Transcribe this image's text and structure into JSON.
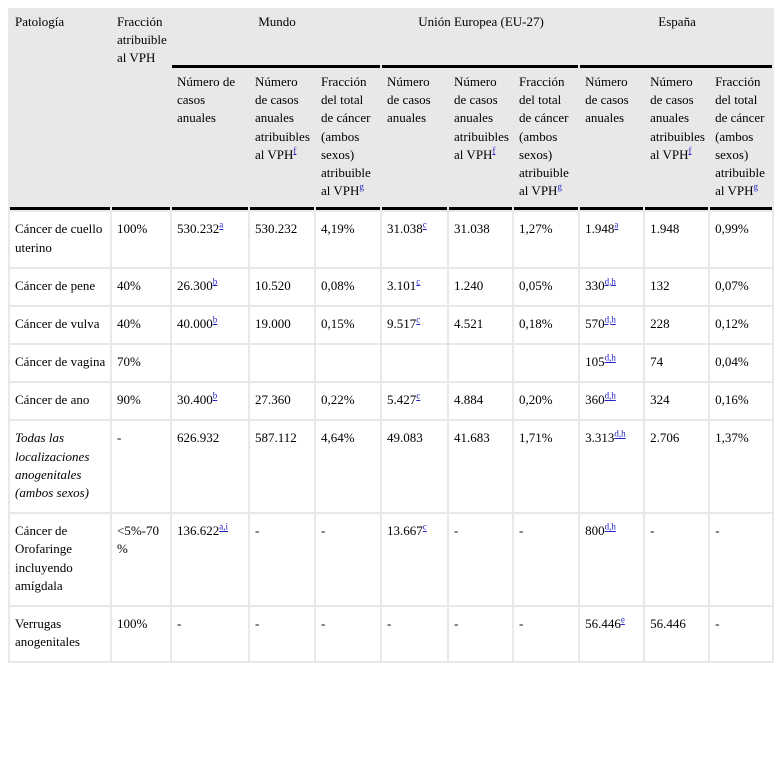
{
  "colors": {
    "table_background": "#e8e8e8",
    "cell_background": "#ffffff",
    "header_rule": "#000000",
    "footnote_link": "#2222c8",
    "text": "#000000"
  },
  "table": {
    "top_headers": [
      {
        "label": "Patología"
      },
      {
        "label": "Fracción atribuible al VPH"
      },
      {
        "label": "Mundo"
      },
      {
        "label": "Unión Europea (EU-27)"
      },
      {
        "label": "España"
      }
    ],
    "sub_headers": [
      {
        "text": "Número de casos anuales",
        "sup": ""
      },
      {
        "text": "Número de casos anuales atribuibles al VPH",
        "sup": "f"
      },
      {
        "text": "Fracción del total de cáncer (ambos sexos) atribuible al VPH",
        "sup": "g"
      },
      {
        "text": "Número de casos anuales",
        "sup": ""
      },
      {
        "text": "Número de casos anuales atribuibles al VPH",
        "sup": "f"
      },
      {
        "text": "Fracción del total de cáncer (ambos sexos) atribuible al VPH",
        "sup": "g"
      },
      {
        "text": "Número de casos anuales",
        "sup": ""
      },
      {
        "text": "Número de casos anuales atribuibles al VPH",
        "sup": "f"
      },
      {
        "text": "Fracción del total de cáncer (ambos sexos) atribuible al VPH",
        "sup": "g"
      }
    ],
    "rows": [
      {
        "pathology": "Cáncer de cuello uterino",
        "italic": false,
        "cells": [
          {
            "t": "100%"
          },
          {
            "t": "530.232",
            "sup": "a"
          },
          {
            "t": "530.232"
          },
          {
            "t": "4,19%"
          },
          {
            "t": "31.038",
            "sup": "c"
          },
          {
            "t": "31.038"
          },
          {
            "t": "1,27%"
          },
          {
            "t": "1.948",
            "sup": "a"
          },
          {
            "t": "1.948"
          },
          {
            "t": "0,99%"
          }
        ]
      },
      {
        "pathology": "Cáncer de pene",
        "italic": false,
        "cells": [
          {
            "t": "40%"
          },
          {
            "t": "26.300",
            "sup": "b"
          },
          {
            "t": "10.520"
          },
          {
            "t": "0,08%"
          },
          {
            "t": "3.101",
            "sup": "c"
          },
          {
            "t": "1.240"
          },
          {
            "t": "0,05%"
          },
          {
            "t": "330",
            "sup": "d,h"
          },
          {
            "t": "132"
          },
          {
            "t": "0,07%"
          }
        ]
      },
      {
        "pathology": "Cáncer de vulva",
        "italic": false,
        "cells": [
          {
            "t": "40%"
          },
          {
            "t": "40.000",
            "sup": "b"
          },
          {
            "t": "19.000"
          },
          {
            "t": "0,15%"
          },
          {
            "t": "9.517",
            "sup": "c"
          },
          {
            "t": "4.521"
          },
          {
            "t": "0,18%"
          },
          {
            "t": "570",
            "sup": "d,h"
          },
          {
            "t": "228"
          },
          {
            "t": "0,12%"
          }
        ]
      },
      {
        "pathology": "Cáncer de vagina",
        "italic": false,
        "cells": [
          {
            "t": "70%"
          },
          {
            "t": ""
          },
          {
            "t": ""
          },
          {
            "t": ""
          },
          {
            "t": ""
          },
          {
            "t": ""
          },
          {
            "t": ""
          },
          {
            "t": "105",
            "sup": "d,h"
          },
          {
            "t": "74"
          },
          {
            "t": "0,04%"
          }
        ]
      },
      {
        "pathology": "Cáncer de ano",
        "italic": false,
        "cells": [
          {
            "t": "90%"
          },
          {
            "t": "30.400",
            "sup": "b"
          },
          {
            "t": "27.360"
          },
          {
            "t": "0,22%"
          },
          {
            "t": "5.427",
            "sup": "c"
          },
          {
            "t": "4.884"
          },
          {
            "t": "0,20%"
          },
          {
            "t": "360",
            "sup": "d,h"
          },
          {
            "t": "324"
          },
          {
            "t": "0,16%"
          }
        ]
      },
      {
        "pathology": "Todas las localizaciones anogenitales (ambos sexos)",
        "italic": true,
        "cells": [
          {
            "t": "-"
          },
          {
            "t": "626.932"
          },
          {
            "t": "587.112"
          },
          {
            "t": "4,64%"
          },
          {
            "t": "49.083"
          },
          {
            "t": "41.683"
          },
          {
            "t": "1,71%"
          },
          {
            "t": "3.313",
            "sup": "d,h"
          },
          {
            "t": "2.706"
          },
          {
            "t": "1,37%"
          }
        ]
      },
      {
        "pathology": "Cáncer de Orofaringe incluyendo amígdala",
        "italic": false,
        "cells": [
          {
            "t": "<5%-70%"
          },
          {
            "t": "136.622",
            "sup": "a,i"
          },
          {
            "t": "-"
          },
          {
            "t": "-"
          },
          {
            "t": "13.667",
            "sup": "c"
          },
          {
            "t": "-"
          },
          {
            "t": "-"
          },
          {
            "t": "800",
            "sup": "d,h"
          },
          {
            "t": "-"
          },
          {
            "t": "-"
          }
        ]
      },
      {
        "pathology": "Verrugas anogenitales",
        "italic": false,
        "cells": [
          {
            "t": "100%"
          },
          {
            "t": "-"
          },
          {
            "t": "-"
          },
          {
            "t": "-"
          },
          {
            "t": "-"
          },
          {
            "t": "-"
          },
          {
            "t": "-"
          },
          {
            "t": "56.446",
            "sup": "e"
          },
          {
            "t": "56.446"
          },
          {
            "t": "-"
          }
        ]
      }
    ]
  }
}
